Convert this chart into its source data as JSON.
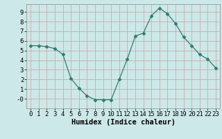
{
  "x": [
    0,
    1,
    2,
    3,
    4,
    5,
    6,
    7,
    8,
    9,
    10,
    11,
    12,
    13,
    14,
    15,
    16,
    17,
    18,
    19,
    20,
    21,
    22,
    23
  ],
  "y": [
    5.5,
    5.5,
    5.4,
    5.2,
    4.6,
    2.1,
    1.1,
    0.3,
    -0.1,
    -0.1,
    -0.1,
    2.0,
    4.1,
    6.5,
    6.8,
    8.6,
    9.4,
    8.8,
    7.8,
    6.4,
    5.5,
    4.6,
    4.1,
    3.2
  ],
  "line_color": "#2e7d6e",
  "marker": "D",
  "marker_size": 2.5,
  "bg_color": "#cde8e8",
  "grid_color": "#b0cccc",
  "xlabel": "Humidex (Indice chaleur)",
  "ylim": [
    -1.0,
    9.8
  ],
  "xlim": [
    -0.5,
    23.5
  ],
  "xticks": [
    0,
    1,
    2,
    3,
    4,
    5,
    6,
    7,
    8,
    9,
    10,
    11,
    12,
    13,
    14,
    15,
    16,
    17,
    18,
    19,
    20,
    21,
    22,
    23
  ],
  "yticks": [
    0,
    1,
    2,
    3,
    4,
    5,
    6,
    7,
    8,
    9
  ],
  "ytick_labels": [
    "-0",
    "1",
    "2",
    "3",
    "4",
    "5",
    "6",
    "7",
    "8",
    "9"
  ],
  "tick_fontsize": 6.5,
  "xlabel_fontsize": 7.5,
  "line_width": 0.9
}
